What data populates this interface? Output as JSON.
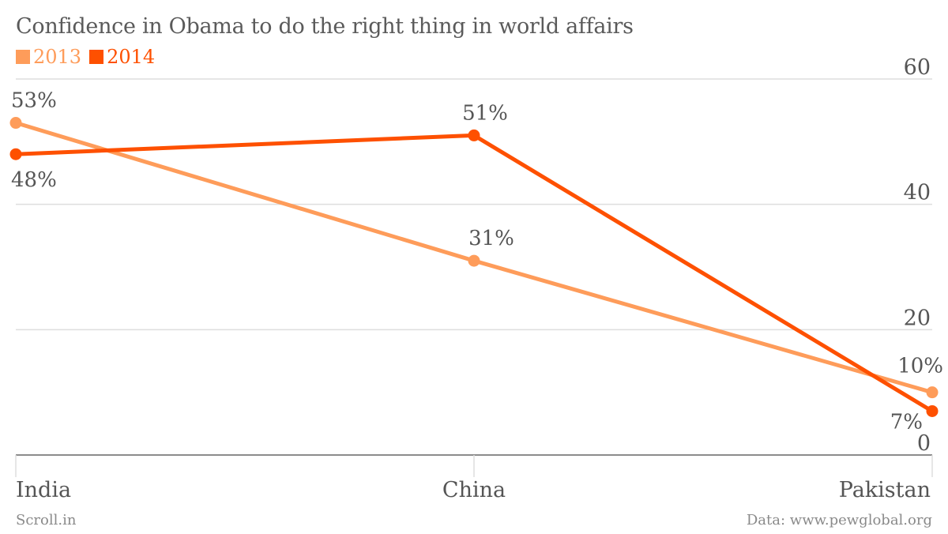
{
  "chart_data": {
    "type": "line",
    "title": "Confidence in Obama to do the right thing in world affairs",
    "categories": [
      "India",
      "China",
      "Pakistan"
    ],
    "series": [
      {
        "name": "2013",
        "color": "#fe9c5a",
        "values": [
          53,
          31,
          10
        ],
        "labels": [
          "53%",
          "31%",
          "10%"
        ]
      },
      {
        "name": "2014",
        "color": "#fe5000",
        "values": [
          48,
          51,
          7
        ],
        "labels": [
          "48%",
          "51%",
          "7%"
        ]
      }
    ],
    "ylim": [
      0,
      60
    ],
    "yticks": [
      0,
      20,
      40,
      60
    ],
    "ytick_labels": [
      "0",
      "20",
      "40",
      "60"
    ],
    "y_axis_side": "right",
    "grid": true,
    "legend_position": "top-left"
  },
  "footer": {
    "source_left": "Scroll.in",
    "source_right": "Data: www.pewglobal.org"
  }
}
